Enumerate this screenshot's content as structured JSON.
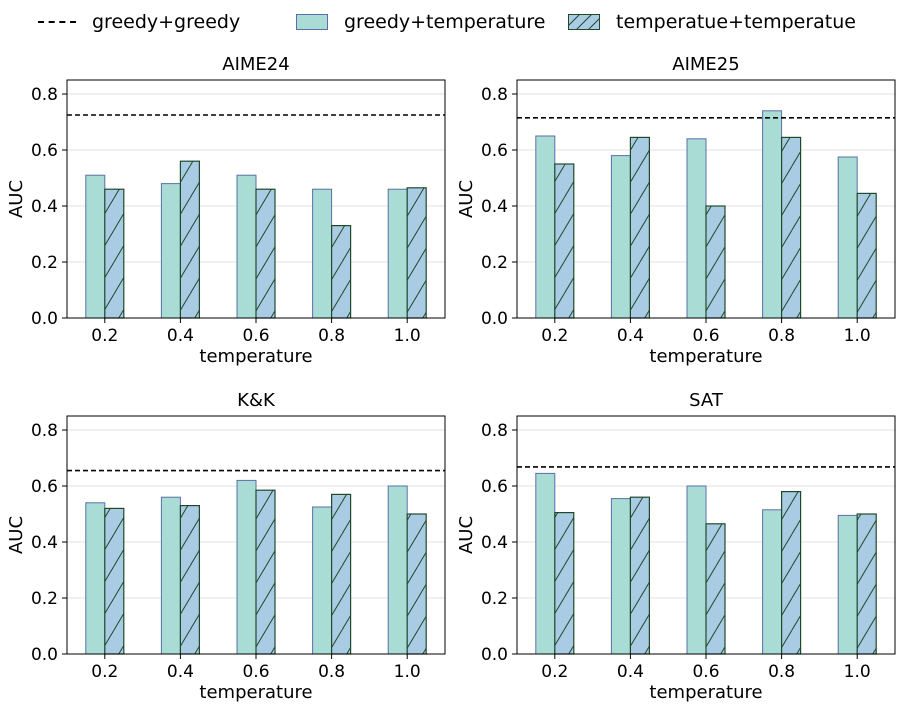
{
  "legend": {
    "greedy_greedy": "greedy+greedy",
    "greedy_temperature": "greedy+temperature",
    "temperature_temperature": "temperatue+temperatue"
  },
  "colors": {
    "greedy_temperature_fill": "#a8dcd4",
    "greedy_temperature_edge": "#5a6fa8",
    "temperature_temperature_fill": "#a9cbe3",
    "temperature_temperature_edge": "#1f4a2a",
    "baseline": "#000000"
  },
  "chart_data": [
    {
      "type": "bar",
      "title": "AIME24",
      "xlabel": "temperature",
      "ylabel": "AUC",
      "categories": [
        "0.2",
        "0.4",
        "0.6",
        "0.8",
        "1.0"
      ],
      "ylim": [
        0,
        0.85
      ],
      "yticks": [
        "0.0",
        "0.2",
        "0.4",
        "0.6",
        "0.8"
      ],
      "baseline": 0.725,
      "series": [
        {
          "name": "greedy+temperature",
          "values": [
            0.51,
            0.48,
            0.51,
            0.46,
            0.46
          ]
        },
        {
          "name": "temperatue+temperatue",
          "values": [
            0.46,
            0.56,
            0.46,
            0.33,
            0.465
          ]
        }
      ]
    },
    {
      "type": "bar",
      "title": "AIME25",
      "xlabel": "temperature",
      "ylabel": "AUC",
      "categories": [
        "0.2",
        "0.4",
        "0.6",
        "0.8",
        "1.0"
      ],
      "ylim": [
        0,
        0.85
      ],
      "yticks": [
        "0.0",
        "0.2",
        "0.4",
        "0.6",
        "0.8"
      ],
      "baseline": 0.715,
      "series": [
        {
          "name": "greedy+temperature",
          "values": [
            0.65,
            0.58,
            0.64,
            0.74,
            0.575
          ]
        },
        {
          "name": "temperatue+temperatue",
          "values": [
            0.55,
            0.645,
            0.4,
            0.645,
            0.445
          ]
        }
      ]
    },
    {
      "type": "bar",
      "title": "K&K",
      "xlabel": "temperature",
      "ylabel": "AUC",
      "categories": [
        "0.2",
        "0.4",
        "0.6",
        "0.8",
        "1.0"
      ],
      "ylim": [
        0,
        0.85
      ],
      "yticks": [
        "0.0",
        "0.2",
        "0.4",
        "0.6",
        "0.8"
      ],
      "baseline": 0.655,
      "series": [
        {
          "name": "greedy+temperature",
          "values": [
            0.54,
            0.56,
            0.62,
            0.525,
            0.6
          ]
        },
        {
          "name": "temperatue+temperatue",
          "values": [
            0.52,
            0.53,
            0.585,
            0.57,
            0.5
          ]
        }
      ]
    },
    {
      "type": "bar",
      "title": "SAT",
      "xlabel": "temperature",
      "ylabel": "AUC",
      "categories": [
        "0.2",
        "0.4",
        "0.6",
        "0.8",
        "1.0"
      ],
      "ylim": [
        0,
        0.85
      ],
      "yticks": [
        "0.0",
        "0.2",
        "0.4",
        "0.6",
        "0.8"
      ],
      "baseline": 0.668,
      "series": [
        {
          "name": "greedy+temperature",
          "values": [
            0.645,
            0.555,
            0.6,
            0.515,
            0.495
          ]
        },
        {
          "name": "temperatue+temperatue",
          "values": [
            0.505,
            0.56,
            0.465,
            0.58,
            0.5
          ]
        }
      ]
    }
  ]
}
